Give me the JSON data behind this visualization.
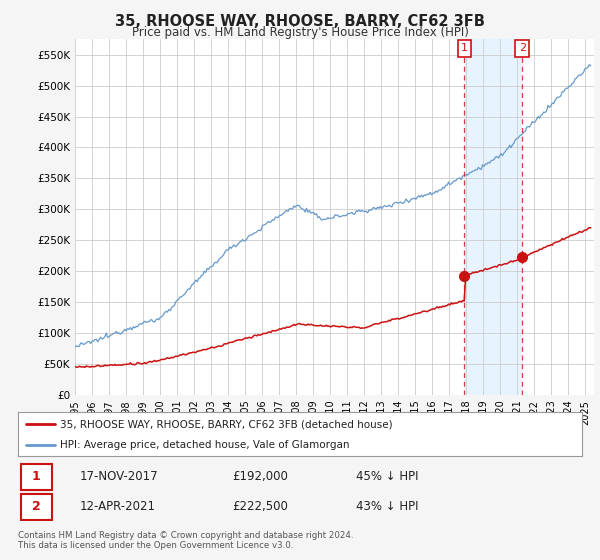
{
  "title": "35, RHOOSE WAY, RHOOSE, BARRY, CF62 3FB",
  "subtitle": "Price paid vs. HM Land Registry's House Price Index (HPI)",
  "ylabel_ticks": [
    0,
    50000,
    100000,
    150000,
    200000,
    250000,
    300000,
    350000,
    400000,
    450000,
    500000,
    550000
  ],
  "ylim": [
    0,
    575000
  ],
  "xlim_start": 1995.0,
  "xlim_end": 2025.5,
  "hpi_color": "#6699cc",
  "property_color": "#cc1111",
  "background_color": "#f5f5f5",
  "plot_bg_color": "#ffffff",
  "shade_color": "#ddeeff",
  "legend_entries": [
    "35, RHOOSE WAY, RHOOSE, BARRY, CF62 3FB (detached house)",
    "HPI: Average price, detached house, Vale of Glamorgan"
  ],
  "transactions": [
    {
      "num": 1,
      "date": "17-NOV-2017",
      "price": "£192,000",
      "hpi": "45% ↓ HPI"
    },
    {
      "num": 2,
      "date": "12-APR-2021",
      "price": "£222,500",
      "hpi": "43% ↓ HPI"
    }
  ],
  "footnote": "Contains HM Land Registry data © Crown copyright and database right 2024.\nThis data is licensed under the Open Government Licence v3.0.",
  "sale1_x": 2017.88,
  "sale1_y": 192000,
  "sale2_x": 2021.28,
  "sale2_y": 222500
}
